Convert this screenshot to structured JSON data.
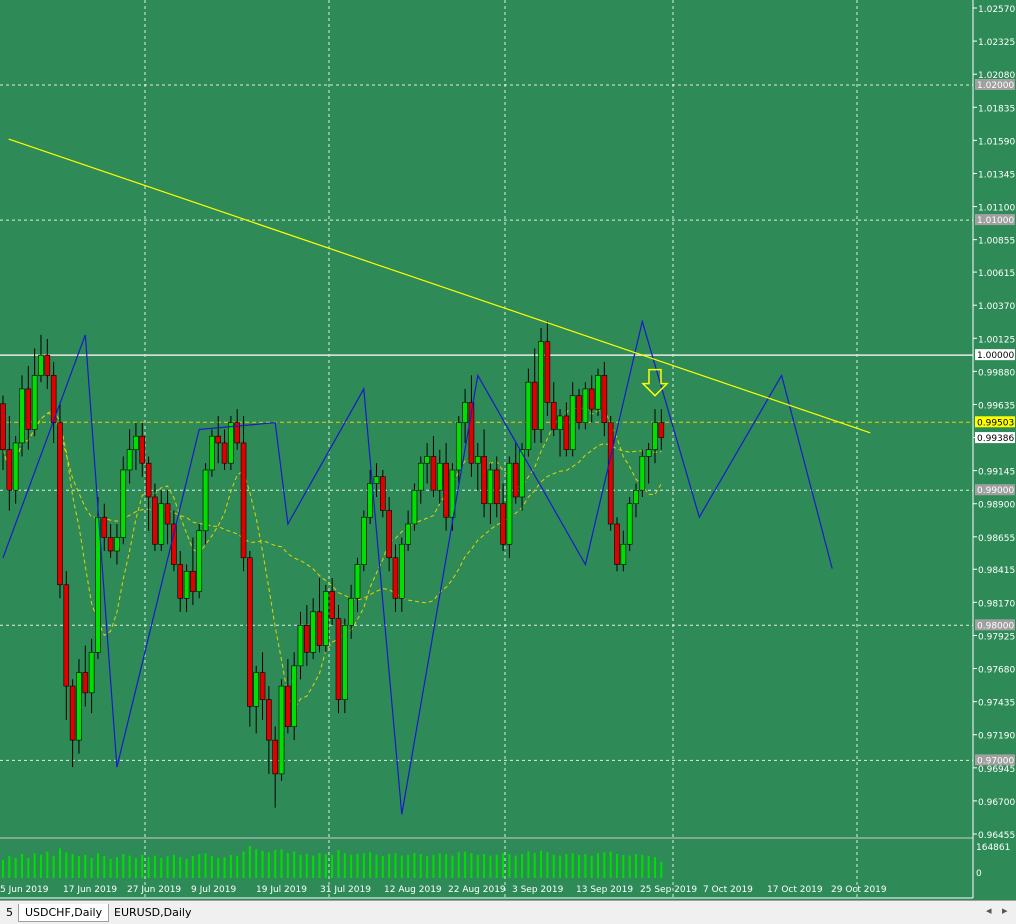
{
  "chart_data": {
    "type": "candlestick",
    "symbol": "USDCHF",
    "timeframe": "Daily",
    "price_axis": {
      "range": [
        0.96455,
        1.0257
      ],
      "ticks": [
        "1.02570",
        "1.02325",
        "1.02080",
        "1.01835",
        "1.01590",
        "1.01345",
        "1.01100",
        "1.00855",
        "1.00615",
        "1.00370",
        "1.00125",
        "0.99880",
        "0.99635",
        "0.99390",
        "0.99145",
        "0.98900",
        "0.98655",
        "0.98415",
        "0.98170",
        "0.97925",
        "0.97680",
        "0.97435",
        "0.97190",
        "0.96945",
        "0.96700",
        "0.96455"
      ]
    },
    "price_labels": [
      {
        "text": "1.02000",
        "value": 1.02,
        "style": "gray"
      },
      {
        "text": "1.01000",
        "value": 1.01,
        "style": "gray"
      },
      {
        "text": "1.00000",
        "value": 1.0,
        "style": "white"
      },
      {
        "text": "0.99503",
        "value": 0.99503,
        "style": "yellow"
      },
      {
        "text": "0.99386",
        "value": 0.99386,
        "style": "white"
      },
      {
        "text": "0.99000",
        "value": 0.99,
        "style": "gray"
      },
      {
        "text": "0.98000",
        "value": 0.98,
        "style": "gray"
      },
      {
        "text": "0.97000",
        "value": 0.97,
        "style": "gray"
      }
    ],
    "date_labels": [
      "5 Jun 2019",
      "17 Jun 2019",
      "27 Jun 2019",
      "9 Jul 2019",
      "19 Jul 2019",
      "31 Jul 2019",
      "12 Aug 2019",
      "22 Aug 2019",
      "3 Sep 2019",
      "13 Sep 2019",
      "25 Sep 2019",
      "7 Oct 2019",
      "17 Oct 2019",
      "29 Oct 2019"
    ],
    "volume_axis": {
      "max_label": "164861",
      "min_label": "0"
    },
    "colors": {
      "background": "#2e8b57",
      "bull": "#00e000",
      "bear": "#e00000",
      "zigzag": "#1a1acc",
      "trendline": "#ffff00",
      "ma": "#e6d200",
      "grid": "#ffffff"
    },
    "candles": [
      [
        0.9964,
        0.997,
        0.9915,
        0.993
      ],
      [
        0.993,
        0.9955,
        0.9885,
        0.99
      ],
      [
        0.99,
        0.994,
        0.989,
        0.9935
      ],
      [
        0.9935,
        0.9985,
        0.9925,
        0.9975
      ],
      [
        0.9975,
        0.9992,
        0.993,
        0.9945
      ],
      [
        0.9945,
        1.0005,
        0.994,
        0.9985
      ],
      [
        0.9985,
        1.0015,
        0.998,
        1.0
      ],
      [
        1.0,
        1.0012,
        0.9975,
        0.9985
      ],
      [
        0.9985,
        0.9995,
        0.9935,
        0.995
      ],
      [
        0.995,
        0.9965,
        0.982,
        0.983
      ],
      [
        0.983,
        0.984,
        0.973,
        0.9755
      ],
      [
        0.9755,
        0.976,
        0.9695,
        0.9715
      ],
      [
        0.9715,
        0.9775,
        0.9705,
        0.9765
      ],
      [
        0.9765,
        0.9785,
        0.974,
        0.975
      ],
      [
        0.975,
        0.979,
        0.9735,
        0.978
      ],
      [
        0.978,
        0.9895,
        0.9775,
        0.988
      ],
      [
        0.988,
        0.989,
        0.9855,
        0.9865
      ],
      [
        0.9865,
        0.9875,
        0.985,
        0.9855
      ],
      [
        0.9855,
        0.9875,
        0.9845,
        0.9865
      ],
      [
        0.9865,
        0.9925,
        0.986,
        0.9915
      ],
      [
        0.9915,
        0.9945,
        0.9905,
        0.993
      ],
      [
        0.993,
        0.995,
        0.9915,
        0.994
      ],
      [
        0.994,
        0.995,
        0.991,
        0.992
      ],
      [
        0.992,
        0.9925,
        0.987,
        0.9895
      ],
      [
        0.9895,
        0.9905,
        0.9855,
        0.986
      ],
      [
        0.986,
        0.99,
        0.9855,
        0.989
      ],
      [
        0.989,
        0.99,
        0.986,
        0.9875
      ],
      [
        0.9875,
        0.9885,
        0.984,
        0.9845
      ],
      [
        0.9845,
        0.9855,
        0.981,
        0.982
      ],
      [
        0.982,
        0.9845,
        0.981,
        0.984
      ],
      [
        0.984,
        0.9865,
        0.9815,
        0.9825
      ],
      [
        0.9825,
        0.9875,
        0.982,
        0.987
      ],
      [
        0.987,
        0.992,
        0.986,
        0.9915
      ],
      [
        0.9915,
        0.9945,
        0.991,
        0.994
      ],
      [
        0.994,
        0.9955,
        0.992,
        0.9935
      ],
      [
        0.9935,
        0.9945,
        0.9915,
        0.992
      ],
      [
        0.992,
        0.9955,
        0.9915,
        0.995
      ],
      [
        0.995,
        0.996,
        0.993,
        0.9935
      ],
      [
        0.9935,
        0.9955,
        0.984,
        0.985
      ],
      [
        0.985,
        0.9855,
        0.9725,
        0.974
      ],
      [
        0.974,
        0.977,
        0.972,
        0.9765
      ],
      [
        0.9765,
        0.978,
        0.973,
        0.9745
      ],
      [
        0.9745,
        0.9755,
        0.969,
        0.9715
      ],
      [
        0.9715,
        0.9725,
        0.9665,
        0.969
      ],
      [
        0.969,
        0.976,
        0.9685,
        0.9755
      ],
      [
        0.9755,
        0.9775,
        0.972,
        0.9725
      ],
      [
        0.9725,
        0.978,
        0.9715,
        0.977
      ],
      [
        0.977,
        0.981,
        0.976,
        0.98
      ],
      [
        0.98,
        0.9815,
        0.977,
        0.978
      ],
      [
        0.978,
        0.982,
        0.9775,
        0.981
      ],
      [
        0.981,
        0.9835,
        0.978,
        0.9785
      ],
      [
        0.9785,
        0.983,
        0.978,
        0.9825
      ],
      [
        0.9825,
        0.9835,
        0.98,
        0.9805
      ],
      [
        0.9805,
        0.9815,
        0.9735,
        0.9745
      ],
      [
        0.9745,
        0.9805,
        0.9735,
        0.98
      ],
      [
        0.98,
        0.983,
        0.979,
        0.982
      ],
      [
        0.982,
        0.985,
        0.981,
        0.9845
      ],
      [
        0.9845,
        0.9885,
        0.984,
        0.988
      ],
      [
        0.988,
        0.9915,
        0.9875,
        0.9905
      ],
      [
        0.9905,
        0.992,
        0.9895,
        0.991
      ],
      [
        0.991,
        0.9915,
        0.988,
        0.9885
      ],
      [
        0.9885,
        0.9895,
        0.984,
        0.985
      ],
      [
        0.985,
        0.986,
        0.981,
        0.982
      ],
      [
        0.982,
        0.9865,
        0.981,
        0.986
      ],
      [
        0.986,
        0.9885,
        0.9855,
        0.9875
      ],
      [
        0.9875,
        0.9905,
        0.987,
        0.99
      ],
      [
        0.99,
        0.9925,
        0.989,
        0.992
      ],
      [
        0.992,
        0.9935,
        0.9905,
        0.9925
      ],
      [
        0.9925,
        0.994,
        0.9895,
        0.99
      ],
      [
        0.99,
        0.993,
        0.989,
        0.992
      ],
      [
        0.992,
        0.9935,
        0.987,
        0.988
      ],
      [
        0.988,
        0.992,
        0.987,
        0.9915
      ],
      [
        0.9915,
        0.9955,
        0.9905,
        0.995
      ],
      [
        0.995,
        0.9975,
        0.9935,
        0.9965
      ],
      [
        0.9965,
        0.9985,
        0.991,
        0.992
      ],
      [
        0.992,
        0.9935,
        0.99,
        0.9925
      ],
      [
        0.9925,
        0.9945,
        0.988,
        0.989
      ],
      [
        0.989,
        0.992,
        0.9875,
        0.9915
      ],
      [
        0.9915,
        0.9925,
        0.988,
        0.989
      ],
      [
        0.989,
        0.9905,
        0.9855,
        0.986
      ],
      [
        0.986,
        0.9925,
        0.985,
        0.992
      ],
      [
        0.992,
        0.9935,
        0.989,
        0.9895
      ],
      [
        0.9895,
        0.9935,
        0.9885,
        0.993
      ],
      [
        0.993,
        0.999,
        0.9925,
        0.998
      ],
      [
        0.998,
        1.0005,
        0.9935,
        0.9945
      ],
      [
        0.9945,
        1.002,
        0.9935,
        1.001
      ],
      [
        1.001,
        1.0025,
        0.9955,
        0.9965
      ],
      [
        0.9965,
        0.998,
        0.994,
        0.9945
      ],
      [
        0.9945,
        0.996,
        0.9925,
        0.9955
      ],
      [
        0.9955,
        0.9965,
        0.9925,
        0.993
      ],
      [
        0.993,
        0.998,
        0.9925,
        0.997
      ],
      [
        0.997,
        0.9975,
        0.9945,
        0.995
      ],
      [
        0.995,
        0.998,
        0.9945,
        0.9975
      ],
      [
        0.9975,
        0.9985,
        0.995,
        0.996
      ],
      [
        0.996,
        0.999,
        0.9955,
        0.9985
      ],
      [
        0.9985,
        0.9995,
        0.994,
        0.995
      ],
      [
        0.995,
        0.9955,
        0.987,
        0.9875
      ],
      [
        0.9875,
        0.988,
        0.984,
        0.9845
      ],
      [
        0.9845,
        0.987,
        0.984,
        0.986
      ],
      [
        0.986,
        0.9895,
        0.9855,
        0.989
      ],
      [
        0.989,
        0.9905,
        0.988,
        0.99
      ],
      [
        0.99,
        0.993,
        0.9895,
        0.9925
      ],
      [
        0.9925,
        0.9935,
        0.9905,
        0.993
      ],
      [
        0.993,
        0.996,
        0.992,
        0.995
      ],
      [
        0.995,
        0.996,
        0.993,
        0.9939
      ]
    ],
    "zigzag": [
      [
        0,
        0.985
      ],
      [
        13,
        1.0015
      ],
      [
        18,
        0.9695
      ],
      [
        31,
        0.9945
      ],
      [
        43,
        0.995
      ],
      [
        45,
        0.9875
      ],
      [
        57,
        0.9975
      ],
      [
        63,
        0.966
      ],
      [
        75,
        0.9985
      ],
      [
        92,
        0.9845
      ],
      [
        101,
        1.0025
      ],
      [
        110,
        0.988
      ],
      [
        123,
        0.9985
      ],
      [
        131,
        0.9842
      ]
    ],
    "trendline": [
      [
        0.9,
        1.016
      ],
      [
        137.0,
        0.99425
      ]
    ],
    "horizontal_levels": [
      1.0,
      0.99503
    ],
    "volumes": [
      0.45,
      0.55,
      0.5,
      0.6,
      0.5,
      0.62,
      0.58,
      0.66,
      0.55,
      0.74,
      0.64,
      0.6,
      0.55,
      0.58,
      0.5,
      0.62,
      0.55,
      0.48,
      0.52,
      0.6,
      0.56,
      0.5,
      0.58,
      0.52,
      0.56,
      0.5,
      0.54,
      0.58,
      0.52,
      0.48,
      0.55,
      0.6,
      0.62,
      0.55,
      0.5,
      0.52,
      0.58,
      0.56,
      0.66,
      0.8,
      0.72,
      0.68,
      0.64,
      0.7,
      0.72,
      0.62,
      0.66,
      0.58,
      0.6,
      0.56,
      0.62,
      0.6,
      0.58,
      0.7,
      0.62,
      0.58,
      0.6,
      0.62,
      0.64,
      0.58,
      0.55,
      0.6,
      0.62,
      0.56,
      0.58,
      0.62,
      0.6,
      0.55,
      0.58,
      0.62,
      0.6,
      0.56,
      0.64,
      0.66,
      0.62,
      0.58,
      0.6,
      0.56,
      0.58,
      0.62,
      0.6,
      0.56,
      0.6,
      0.66,
      0.62,
      0.68,
      0.64,
      0.58,
      0.56,
      0.6,
      0.62,
      0.58,
      0.6,
      0.56,
      0.62,
      0.64,
      0.66,
      0.6,
      0.58,
      0.56,
      0.6,
      0.58,
      0.55,
      0.52,
      0.4
    ]
  },
  "tabs": [
    {
      "label": "5"
    },
    {
      "label": "USDCHF,Daily",
      "active": true
    },
    {
      "label": "EURUSD,Daily"
    }
  ]
}
